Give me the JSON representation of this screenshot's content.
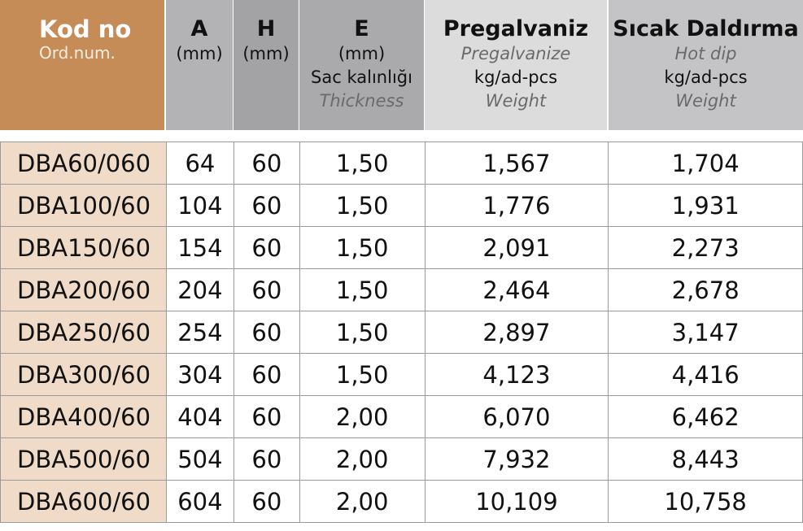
{
  "header": {
    "kod": {
      "title": "Kod no",
      "subtitle": "Ord.num."
    },
    "a": {
      "title": "A",
      "unit": "(mm)"
    },
    "h": {
      "title": "H",
      "unit": "(mm)"
    },
    "e": {
      "title": "E",
      "unit": "(mm)",
      "label_tr": "Sac kalınlığı",
      "label_en": "Thickness"
    },
    "pregalvaniz": {
      "title": "Pregalvaniz",
      "label_en": "Pregalvanize",
      "unit": "kg/ad-pcs",
      "weight_en": "Weight"
    },
    "sicak": {
      "title": "Sıcak Daldırma",
      "label_en": "Hot dip",
      "unit": "kg/ad-pcs",
      "weight_en": "Weight"
    }
  },
  "rows": [
    {
      "kod": "DBA60/060",
      "a": "64",
      "h": "60",
      "e": "1,50",
      "pre": "1,567",
      "hot": "1,704"
    },
    {
      "kod": "DBA100/60",
      "a": "104",
      "h": "60",
      "e": "1,50",
      "pre": "1,776",
      "hot": "1,931"
    },
    {
      "kod": "DBA150/60",
      "a": "154",
      "h": "60",
      "e": "1,50",
      "pre": "2,091",
      "hot": "2,273"
    },
    {
      "kod": "DBA200/60",
      "a": "204",
      "h": "60",
      "e": "1,50",
      "pre": "2,464",
      "hot": "2,678"
    },
    {
      "kod": "DBA250/60",
      "a": "254",
      "h": "60",
      "e": "1,50",
      "pre": "2,897",
      "hot": "3,147"
    },
    {
      "kod": "DBA300/60",
      "a": "304",
      "h": "60",
      "e": "1,50",
      "pre": "4,123",
      "hot": "4,416"
    },
    {
      "kod": "DBA400/60",
      "a": "404",
      "h": "60",
      "e": "2,00",
      "pre": "6,070",
      "hot": "6,462"
    },
    {
      "kod": "DBA500/60",
      "a": "504",
      "h": "60",
      "e": "2,00",
      "pre": "7,932",
      "hot": "8,443"
    },
    {
      "kod": "DBA600/60",
      "a": "604",
      "h": "60",
      "e": "2,00",
      "pre": "10,109",
      "hot": "10,758"
    }
  ]
}
